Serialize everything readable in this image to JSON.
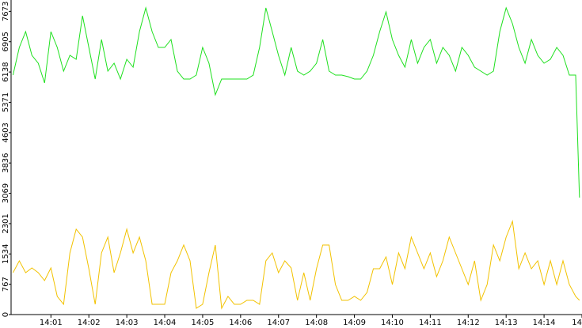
{
  "chart_data": {
    "type": "line",
    "x": [
      0,
      10,
      20,
      30,
      40,
      50,
      60,
      70,
      80,
      90,
      100,
      110,
      120,
      130,
      140,
      150,
      160,
      170,
      180,
      190,
      200,
      210,
      220,
      230,
      240,
      250,
      260,
      270,
      280,
      290,
      300,
      310,
      320,
      330,
      340,
      350,
      360,
      370,
      380,
      390,
      400,
      410,
      420,
      430,
      440,
      450,
      460,
      470,
      480,
      490,
      500,
      510,
      520,
      530,
      540,
      550,
      560,
      570,
      580,
      590,
      600,
      610,
      620,
      630,
      640,
      650,
      660,
      670,
      680,
      690,
      700,
      710,
      720,
      730,
      740,
      750,
      760,
      770,
      780,
      790,
      800,
      810,
      820,
      830,
      840,
      850,
      860,
      870,
      880,
      890,
      896
    ],
    "series": [
      {
        "color": "#1ee01e",
        "values": [
          6060,
          6760,
          7160,
          6560,
          6360,
          5860,
          7160,
          6760,
          6160,
          6560,
          6460,
          7560,
          6760,
          5960,
          6960,
          6160,
          6360,
          5960,
          6460,
          6260,
          7160,
          7760,
          7160,
          6760,
          6760,
          6960,
          6160,
          5960,
          5960,
          6060,
          6760,
          6360,
          5560,
          5960,
          5960,
          5960,
          5960,
          5960,
          6060,
          6760,
          7760,
          7160,
          6560,
          6060,
          6760,
          6160,
          6060,
          6160,
          6360,
          6960,
          6160,
          6060,
          6060,
          6020,
          5960,
          5960,
          6160,
          6560,
          7160,
          7660,
          6960,
          6560,
          6260,
          6960,
          6360,
          6760,
          6960,
          6360,
          6760,
          6560,
          6160,
          6760,
          6560,
          6260,
          6160,
          6060,
          6160,
          7160,
          7760,
          7360,
          6760,
          6360,
          6960,
          6560,
          6360,
          6460,
          6760,
          6560,
          6060,
          6060,
          2960
        ]
      },
      {
        "color": "#f2c200",
        "values": [
          1060,
          1360,
          1060,
          1180,
          1060,
          860,
          1180,
          460,
          260,
          1560,
          2160,
          1960,
          1160,
          260,
          1560,
          1960,
          1060,
          1560,
          2160,
          1560,
          1960,
          1360,
          260,
          260,
          260,
          1060,
          1360,
          1760,
          1360,
          160,
          260,
          1060,
          1760,
          160,
          460,
          260,
          260,
          360,
          360,
          260,
          1360,
          1560,
          1060,
          1360,
          1180,
          360,
          1060,
          360,
          1160,
          1760,
          1760,
          760,
          360,
          360,
          460,
          360,
          560,
          1160,
          1160,
          1460,
          760,
          1560,
          1160,
          1960,
          1560,
          1160,
          1560,
          960,
          1360,
          1960,
          1560,
          1160,
          760,
          1360,
          360,
          760,
          1760,
          1360,
          1960,
          2360,
          1160,
          1560,
          1160,
          1360,
          760,
          1360,
          760,
          1360,
          760,
          460,
          360
        ]
      }
    ],
    "xlim": [
      -3,
      900
    ],
    "xticks": [
      {
        "value": 60,
        "label": "14:01"
      },
      {
        "value": 120,
        "label": "14:02"
      },
      {
        "value": 180,
        "label": "14:03"
      },
      {
        "value": 240,
        "label": "14:04"
      },
      {
        "value": 300,
        "label": "14:05"
      },
      {
        "value": 360,
        "label": "14:06"
      },
      {
        "value": 420,
        "label": "14:07"
      },
      {
        "value": 480,
        "label": "14:08"
      },
      {
        "value": 540,
        "label": "14:09"
      },
      {
        "value": 600,
        "label": "14:10"
      },
      {
        "value": 660,
        "label": "14:11"
      },
      {
        "value": 720,
        "label": "14:12"
      },
      {
        "value": 780,
        "label": "14:13"
      },
      {
        "value": 840,
        "label": "14:14"
      },
      {
        "value": 900,
        "label": "14"
      }
    ],
    "ylim": [
      0,
      7960
    ],
    "yticks": [
      0,
      767,
      1534,
      2301,
      3069,
      3836,
      4603,
      5371,
      6138,
      6905,
      7673
    ]
  }
}
